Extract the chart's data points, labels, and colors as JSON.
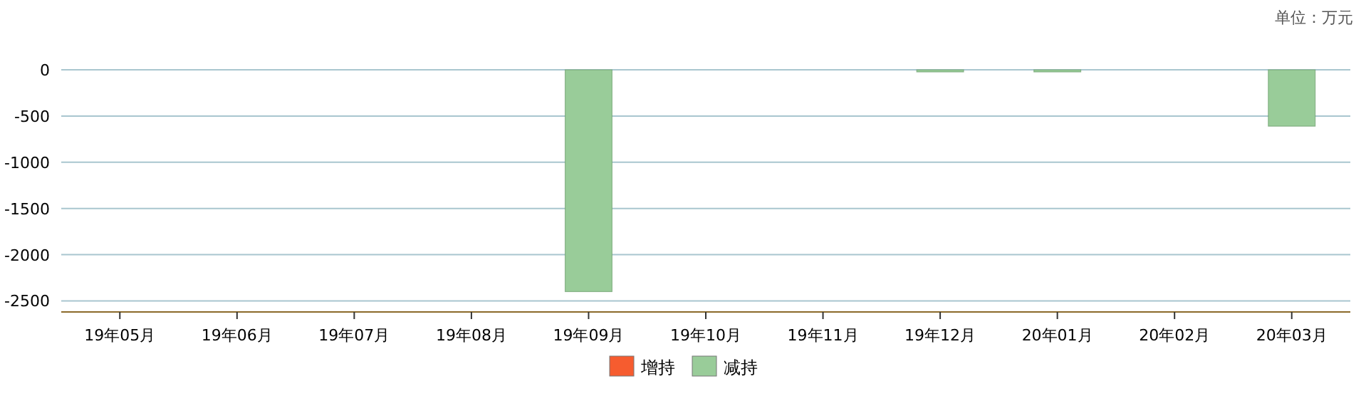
{
  "chart_data": {
    "type": "bar",
    "annotations": [
      "单位：万元"
    ],
    "categories": [
      "19年05月",
      "19年06月",
      "19年07月",
      "19年08月",
      "19年09月",
      "19年10月",
      "19年11月",
      "19年12月",
      "20年01月",
      "20年02月",
      "20年03月"
    ],
    "series": [
      {
        "name": "增持",
        "color": "#f65c2f",
        "values": [
          null,
          null,
          null,
          null,
          null,
          null,
          null,
          null,
          null,
          null,
          null
        ]
      },
      {
        "name": "减持",
        "color": "#99cc99",
        "values": [
          null,
          null,
          null,
          null,
          -2400,
          null,
          null,
          -10,
          -10,
          null,
          -610
        ]
      }
    ],
    "ylim": [
      -2620,
      0
    ],
    "yticks": [
      0,
      -500,
      -1000,
      -1500,
      -2000,
      -2500
    ],
    "grid": "y",
    "legend": "bottom"
  }
}
